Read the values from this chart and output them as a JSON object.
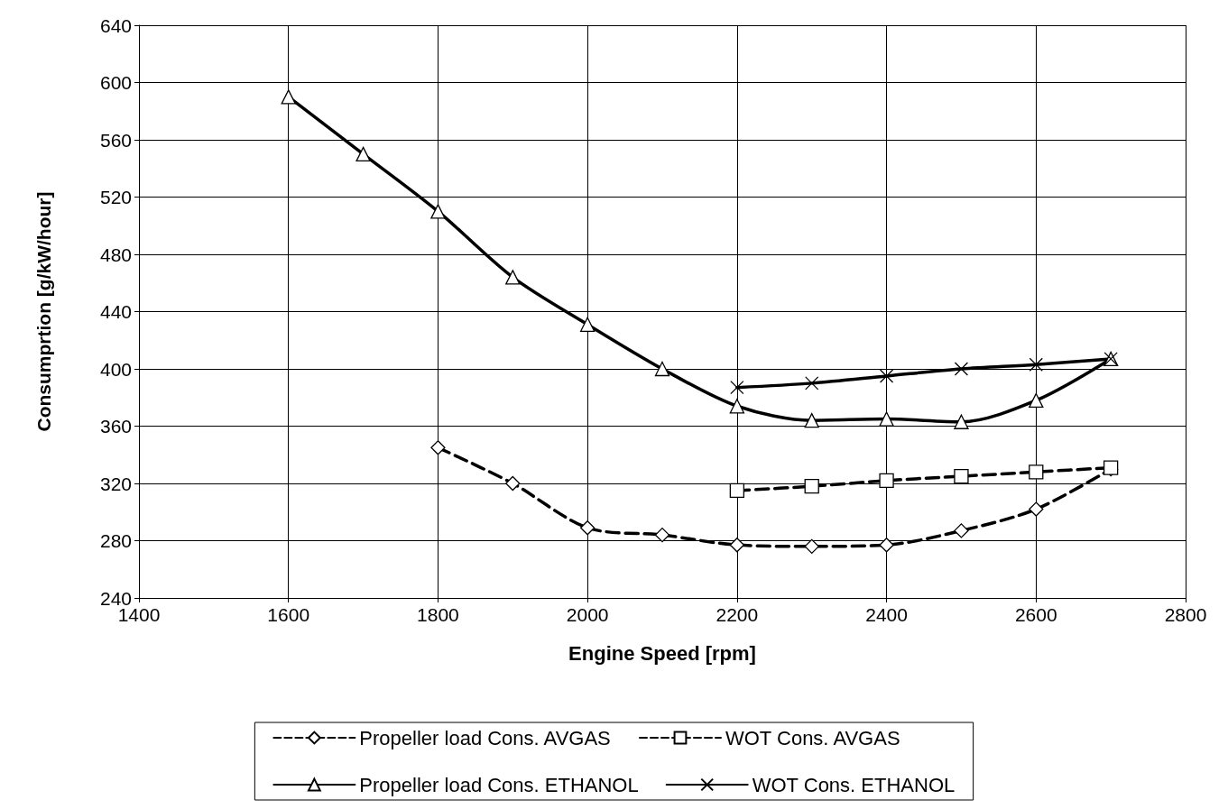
{
  "chart_data": {
    "type": "line",
    "xlabel": "Engine Speed [rpm]",
    "ylabel": "Consumprtion [g/kW/hour]",
    "xlim": [
      1400,
      2800
    ],
    "xticks": [
      1400,
      1600,
      1800,
      2000,
      2200,
      2400,
      2600,
      2800
    ],
    "ylim": [
      240,
      640
    ],
    "yticks": [
      240,
      280,
      320,
      360,
      400,
      440,
      480,
      520,
      560,
      600,
      640
    ],
    "grid": true,
    "legend": "bottom",
    "series": [
      {
        "name": "Propeller load Cons. AVGAS",
        "color": "#000000",
        "marker": "diamond",
        "line_style": "dashed",
        "x": [
          1800,
          1900,
          2000,
          2100,
          2200,
          2300,
          2400,
          2500,
          2600,
          2700
        ],
        "values": [
          345,
          320,
          289,
          284,
          277,
          276,
          277,
          287,
          302,
          330
        ]
      },
      {
        "name": "WOT Cons. AVGAS",
        "color": "#000000",
        "marker": "square",
        "line_style": "dashed",
        "x": [
          2200,
          2300,
          2400,
          2500,
          2600,
          2700
        ],
        "values": [
          315,
          318,
          322,
          325,
          328,
          331
        ]
      },
      {
        "name": "Propeller load Cons. ETHANOL",
        "color": "#000000",
        "marker": "triangle",
        "line_style": "solid",
        "x": [
          1600,
          1700,
          1800,
          1900,
          2000,
          2100,
          2200,
          2300,
          2400,
          2500,
          2600,
          2700
        ],
        "values": [
          590,
          550,
          510,
          464,
          431,
          400,
          374,
          364,
          365,
          363,
          378,
          407
        ]
      },
      {
        "name": "WOT Cons. ETHANOL",
        "color": "#000000",
        "marker": "cross",
        "line_style": "solid",
        "x": [
          2200,
          2300,
          2400,
          2500,
          2600,
          2700
        ],
        "values": [
          387,
          390,
          395,
          400,
          403,
          407
        ]
      }
    ]
  }
}
